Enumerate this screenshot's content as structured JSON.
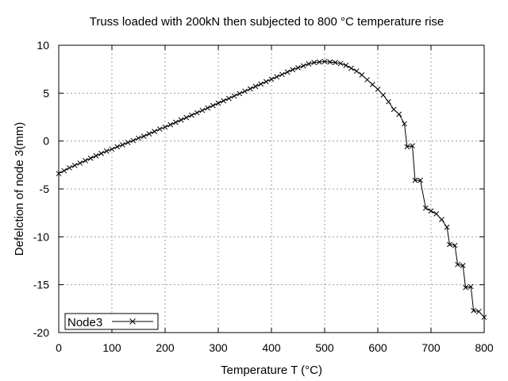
{
  "chart_data": {
    "type": "line",
    "title": "Truss loaded with 200kN then subjected to 800 °C temperature rise",
    "xlabel": "Temperature T (°C)",
    "ylabel": "Defelction of node 3(mm)",
    "xlim": [
      0,
      800
    ],
    "ylim": [
      -20,
      10
    ],
    "xticks": [
      0,
      100,
      200,
      300,
      400,
      500,
      600,
      700,
      800
    ],
    "yticks": [
      -20,
      -15,
      -10,
      -5,
      0,
      5,
      10
    ],
    "grid": true,
    "legend_position": "bottom-left",
    "series": [
      {
        "name": "Node3",
        "color": "#000000",
        "marker": "x",
        "x": [
          0,
          10,
          20,
          30,
          40,
          50,
          60,
          70,
          80,
          90,
          100,
          110,
          120,
          130,
          140,
          150,
          160,
          170,
          180,
          190,
          200,
          210,
          220,
          230,
          240,
          250,
          260,
          270,
          280,
          290,
          300,
          310,
          320,
          330,
          340,
          350,
          360,
          370,
          380,
          390,
          400,
          410,
          420,
          430,
          440,
          450,
          460,
          470,
          480,
          490,
          500,
          510,
          520,
          530,
          540,
          550,
          560,
          570,
          580,
          590,
          600,
          610,
          620,
          630,
          640,
          650,
          655,
          665,
          670,
          680,
          690,
          700,
          710,
          720,
          730,
          735,
          745,
          750,
          760,
          765,
          775,
          780,
          790,
          800
        ],
        "y": [
          -3.4,
          -3.1,
          -2.8,
          -2.55,
          -2.3,
          -2.05,
          -1.8,
          -1.55,
          -1.3,
          -1.05,
          -0.85,
          -0.6,
          -0.4,
          -0.15,
          0.05,
          0.3,
          0.5,
          0.75,
          1.0,
          1.25,
          1.45,
          1.7,
          1.95,
          2.2,
          2.45,
          2.7,
          2.95,
          3.2,
          3.45,
          3.7,
          3.95,
          4.2,
          4.45,
          4.7,
          4.95,
          5.2,
          5.45,
          5.7,
          5.95,
          6.2,
          6.45,
          6.7,
          6.95,
          7.2,
          7.45,
          7.65,
          7.85,
          8.05,
          8.2,
          8.25,
          8.3,
          8.25,
          8.2,
          8.1,
          7.9,
          7.6,
          7.3,
          6.9,
          6.4,
          5.9,
          5.4,
          4.8,
          4.1,
          3.3,
          2.8,
          1.8,
          -0.6,
          -0.5,
          -4.1,
          -4.1,
          -7.0,
          -7.3,
          -7.6,
          -8.2,
          -9.0,
          -10.8,
          -10.9,
          -12.9,
          -13.0,
          -15.3,
          -15.2,
          -17.7,
          -17.8,
          -18.4
        ]
      }
    ]
  }
}
